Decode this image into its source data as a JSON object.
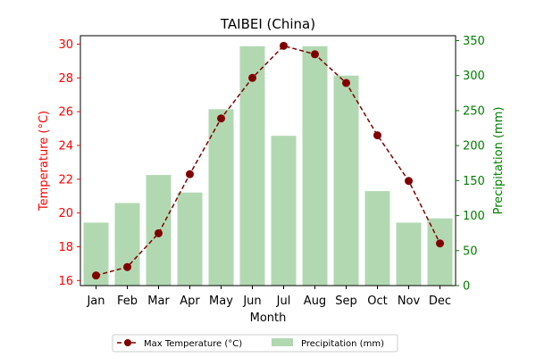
{
  "chart_data": {
    "type": "bar+line",
    "title": "TAIBEI (China)",
    "xlabel": "Month",
    "categories": [
      "Jan",
      "Feb",
      "Mar",
      "Apr",
      "May",
      "Jun",
      "Jul",
      "Aug",
      "Sep",
      "Oct",
      "Nov",
      "Dec"
    ],
    "left_axis": {
      "label": "Temperature (°C)",
      "color": "#ff0000",
      "ylim": [
        15.7,
        30.5
      ],
      "ticks": [
        16,
        18,
        20,
        22,
        24,
        26,
        28,
        30
      ]
    },
    "right_axis": {
      "label": "Precipitation (mm)",
      "color": "#008000",
      "ylim": [
        0,
        357
      ],
      "ticks": [
        0,
        50,
        100,
        150,
        200,
        250,
        300,
        350
      ]
    },
    "series": [
      {
        "name": "Max Temperature (°C)",
        "kind": "line",
        "axis": "left",
        "color": "#800000",
        "style": "dashed",
        "marker": "circle",
        "values": [
          16.3,
          16.8,
          18.8,
          22.3,
          25.6,
          28.0,
          29.9,
          29.4,
          27.7,
          24.6,
          21.9,
          18.2
        ]
      },
      {
        "name": "Precipitation (mm)",
        "kind": "bar",
        "axis": "right",
        "color": "#b2d8b2",
        "values": [
          90,
          118,
          158,
          133,
          252,
          342,
          214,
          342,
          300,
          135,
          90,
          96
        ]
      }
    ],
    "legend": {
      "placement": "bottom-center",
      "columns": 2
    },
    "grid": false
  }
}
